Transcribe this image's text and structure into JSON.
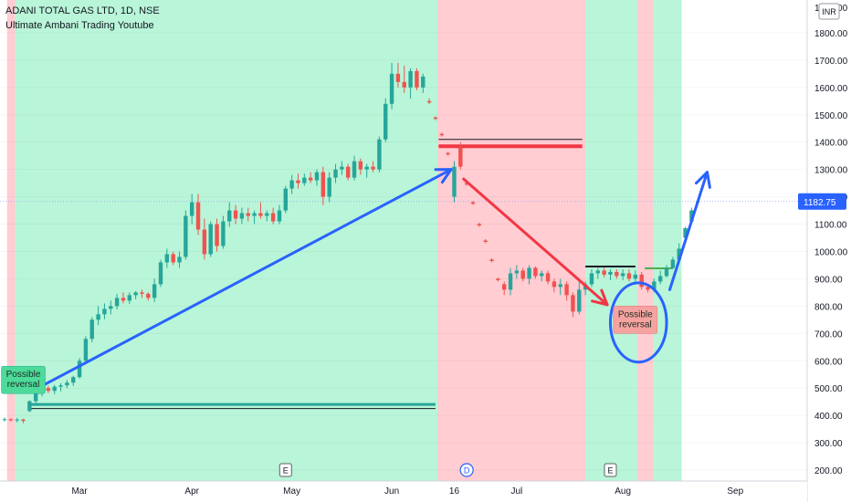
{
  "header": {
    "title": "ADANI TOTAL GAS LTD, 1D, NSE",
    "subtitle": "Ultimate Ambani Trading Youtube"
  },
  "currency": "INR",
  "colors": {
    "up": "#26a69a",
    "down": "#ef5350",
    "bg_green": "#b9f5d8",
    "bg_red": "#ffcdd2",
    "arrow_blue": "#2962ff",
    "arrow_red": "#f23645",
    "last_price": "#2962ff"
  },
  "chart_data": {
    "type": "candlestick",
    "y_axis": {
      "range": [
        160,
        1920
      ],
      "ticks": [
        200,
        300,
        400,
        500,
        600,
        700,
        800,
        900,
        1000,
        1100,
        1200,
        1300,
        1400,
        1500,
        1600,
        1700,
        1800
      ],
      "tick_labels": [
        "200.00",
        "300.00",
        "400.00",
        "500.00",
        "600.00",
        "700.00",
        "800.00",
        "900.00",
        "1000.00",
        "1100.00",
        "1200.00",
        "1300.00",
        "1400.00",
        "1500.00",
        "1600.00",
        "1700.00",
        "1800.00"
      ],
      "top_partial_label": "1900.00",
      "last_price": 1182.75,
      "last_price_label": "1182.75"
    },
    "x_axis": {
      "labels": [
        {
          "text": "Mar",
          "i": 12
        },
        {
          "text": "Apr",
          "i": 30
        },
        {
          "text": "May",
          "i": 46
        },
        {
          "text": "Jun",
          "i": 62
        },
        {
          "text": "16",
          "i": 72
        },
        {
          "text": "Jul",
          "i": 82
        },
        {
          "text": "Aug",
          "i": 99
        },
        {
          "text": "Sep",
          "i": 117
        }
      ]
    },
    "candles": [
      [
        385,
        392,
        378,
        386
      ],
      [
        386,
        390,
        378,
        382
      ],
      [
        382,
        390,
        375,
        385
      ],
      [
        385,
        388,
        372,
        380
      ],
      [
        416,
        455,
        412,
        452
      ],
      [
        452,
        495,
        440,
        488
      ],
      [
        488,
        505,
        470,
        500
      ],
      [
        500,
        508,
        482,
        490
      ],
      [
        490,
        512,
        478,
        505
      ],
      [
        505,
        518,
        488,
        510
      ],
      [
        510,
        530,
        500,
        520
      ],
      [
        520,
        545,
        508,
        540
      ],
      [
        540,
        610,
        535,
        600
      ],
      [
        600,
        690,
        590,
        680
      ],
      [
        680,
        760,
        668,
        750
      ],
      [
        750,
        800,
        730,
        770
      ],
      [
        770,
        810,
        752,
        790
      ],
      [
        790,
        820,
        770,
        800
      ],
      [
        800,
        845,
        788,
        830
      ],
      [
        830,
        850,
        810,
        820
      ],
      [
        820,
        850,
        808,
        840
      ],
      [
        840,
        855,
        825,
        850
      ],
      [
        850,
        860,
        830,
        845
      ],
      [
        845,
        850,
        820,
        830
      ],
      [
        830,
        900,
        815,
        880
      ],
      [
        880,
        970,
        870,
        960
      ],
      [
        960,
        1010,
        940,
        990
      ],
      [
        990,
        1000,
        950,
        960
      ],
      [
        960,
        1000,
        940,
        980
      ],
      [
        980,
        1150,
        970,
        1130
      ],
      [
        1130,
        1210,
        1100,
        1180
      ],
      [
        1180,
        1210,
        1060,
        1080
      ],
      [
        1080,
        1120,
        970,
        990
      ],
      [
        990,
        1110,
        980,
        1100
      ],
      [
        1100,
        1120,
        1000,
        1020
      ],
      [
        1020,
        1130,
        1010,
        1110
      ],
      [
        1110,
        1180,
        1090,
        1150
      ],
      [
        1150,
        1170,
        1100,
        1120
      ],
      [
        1120,
        1160,
        1100,
        1140
      ],
      [
        1140,
        1160,
        1110,
        1130
      ],
      [
        1130,
        1150,
        1100,
        1140
      ],
      [
        1140,
        1180,
        1120,
        1130
      ],
      [
        1130,
        1150,
        1110,
        1140
      ],
      [
        1140,
        1160,
        1100,
        1110
      ],
      [
        1110,
        1170,
        1100,
        1150
      ],
      [
        1150,
        1240,
        1140,
        1230
      ],
      [
        1230,
        1280,
        1210,
        1260
      ],
      [
        1260,
        1285,
        1230,
        1250
      ],
      [
        1250,
        1285,
        1240,
        1270
      ],
      [
        1270,
        1290,
        1250,
        1260
      ],
      [
        1260,
        1300,
        1240,
        1290
      ],
      [
        1290,
        1310,
        1170,
        1200
      ],
      [
        1200,
        1290,
        1180,
        1270
      ],
      [
        1270,
        1320,
        1250,
        1300
      ],
      [
        1300,
        1330,
        1280,
        1310
      ],
      [
        1310,
        1320,
        1260,
        1270
      ],
      [
        1270,
        1350,
        1260,
        1330
      ],
      [
        1330,
        1340,
        1280,
        1300
      ],
      [
        1300,
        1320,
        1270,
        1310
      ],
      [
        1310,
        1330,
        1290,
        1300
      ],
      [
        1300,
        1420,
        1290,
        1410
      ],
      [
        1410,
        1560,
        1400,
        1540
      ],
      [
        1540,
        1690,
        1520,
        1650
      ],
      [
        1650,
        1690,
        1600,
        1620
      ],
      [
        1620,
        1680,
        1580,
        1600
      ],
      [
        1600,
        1670,
        1560,
        1660
      ],
      [
        1660,
        1670,
        1590,
        1600
      ],
      [
        1600,
        1650,
        1580,
        1640
      ],
      [
        1550,
        1560,
        1540,
        1545
      ],
      [
        1490,
        1495,
        1480,
        1485
      ],
      [
        1430,
        1435,
        1420,
        1425
      ],
      [
        1360,
        1365,
        1350,
        1355
      ],
      [
        1200,
        1330,
        1180,
        1310
      ],
      [
        1380,
        1400,
        1300,
        1310
      ],
      [
        1250,
        1260,
        1240,
        1245
      ],
      [
        1180,
        1185,
        1170,
        1175
      ],
      [
        1100,
        1105,
        1090,
        1095
      ],
      [
        1040,
        1045,
        1030,
        1035
      ],
      [
        970,
        975,
        960,
        965
      ],
      [
        900,
        905,
        890,
        895
      ],
      [
        880,
        890,
        840,
        860
      ],
      [
        860,
        940,
        840,
        920
      ],
      [
        920,
        950,
        900,
        930
      ],
      [
        930,
        940,
        890,
        900
      ],
      [
        900,
        950,
        880,
        940
      ],
      [
        940,
        945,
        900,
        910
      ],
      [
        910,
        930,
        890,
        920
      ],
      [
        920,
        930,
        880,
        890
      ],
      [
        890,
        900,
        850,
        870
      ],
      [
        870,
        900,
        840,
        880
      ],
      [
        880,
        890,
        820,
        840
      ],
      [
        840,
        850,
        760,
        780
      ],
      [
        780,
        890,
        770,
        860
      ],
      [
        860,
        890,
        840,
        880
      ],
      [
        880,
        935,
        870,
        920
      ],
      [
        920,
        940,
        900,
        930
      ],
      [
        930,
        940,
        905,
        915
      ],
      [
        915,
        935,
        895,
        925
      ],
      [
        925,
        935,
        900,
        910
      ],
      [
        910,
        935,
        895,
        920
      ],
      [
        920,
        935,
        890,
        900
      ],
      [
        900,
        930,
        880,
        915
      ],
      [
        915,
        925,
        860,
        870
      ],
      [
        870,
        880,
        850,
        860
      ],
      [
        860,
        900,
        850,
        890
      ],
      [
        890,
        930,
        880,
        910
      ],
      [
        910,
        950,
        905,
        940
      ],
      [
        940,
        980,
        935,
        970
      ],
      [
        970,
        1030,
        960,
        1010
      ],
      [
        1050,
        1090,
        1045,
        1085
      ],
      [
        1110,
        1160,
        1105,
        1150
      ],
      [
        1180,
        1190,
        1170,
        1183
      ]
    ]
  },
  "background_zones": [
    {
      "color": "bg_red",
      "i0": 0.4,
      "i1": 1.7
    },
    {
      "color": "bg_green",
      "i0": 1.7,
      "i1": 69.3
    },
    {
      "color": "bg_red",
      "i0": 69.3,
      "i1": 93.0
    },
    {
      "color": "bg_green",
      "i0": 93.0,
      "i1": 101.3
    },
    {
      "color": "bg_red",
      "i0": 101.3,
      "i1": 103.8
    },
    {
      "color": "bg_green",
      "i0": 103.8,
      "i1": 108.4
    }
  ],
  "annotations": {
    "labels": [
      {
        "lines": [
          "Possible",
          "reversal"
        ],
        "i": 3,
        "y": 530,
        "style": "green"
      },
      {
        "lines": [
          "Possible",
          "reversal"
        ],
        "i": 101,
        "y": 750,
        "style": "red"
      }
    ],
    "markers": [
      {
        "text": "E",
        "i": 45
      },
      {
        "text": "D",
        "i": 74
      },
      {
        "text": "E",
        "i": 97
      }
    ],
    "hlines": [
      {
        "i0": 4,
        "i1": 69,
        "y": 440,
        "color": "#26a69a",
        "w": 3
      },
      {
        "i0": 4,
        "i1": 69,
        "y": 425,
        "color": "#131722",
        "w": 1
      },
      {
        "i0": 69.5,
        "i1": 92.5,
        "y": 1385,
        "color": "#f23645",
        "w": 4
      },
      {
        "i0": 69.5,
        "i1": 92.5,
        "y": 1410,
        "color": "#131722",
        "w": 1
      },
      {
        "i0": 93,
        "i1": 101,
        "y": 945,
        "color": "#131722",
        "w": 2
      },
      {
        "i0": 102.5,
        "i1": 107,
        "y": 938,
        "color": "#4caf50",
        "w": 2
      }
    ],
    "arrows": [
      {
        "from": [
          4.5,
          490
        ],
        "to": [
          71.5,
          1300
        ],
        "color": "arrow_blue"
      },
      {
        "from": [
          73.5,
          1265
        ],
        "to": [
          96.5,
          805
        ],
        "color": "arrow_red"
      },
      {
        "from": [
          106.5,
          860
        ],
        "to": [
          112.5,
          1290
        ],
        "color": "arrow_blue"
      }
    ],
    "ellipse": {
      "i": 101.5,
      "y": 740,
      "rx_bars": 4.5,
      "ry_price": 145,
      "color": "arrow_blue"
    }
  }
}
